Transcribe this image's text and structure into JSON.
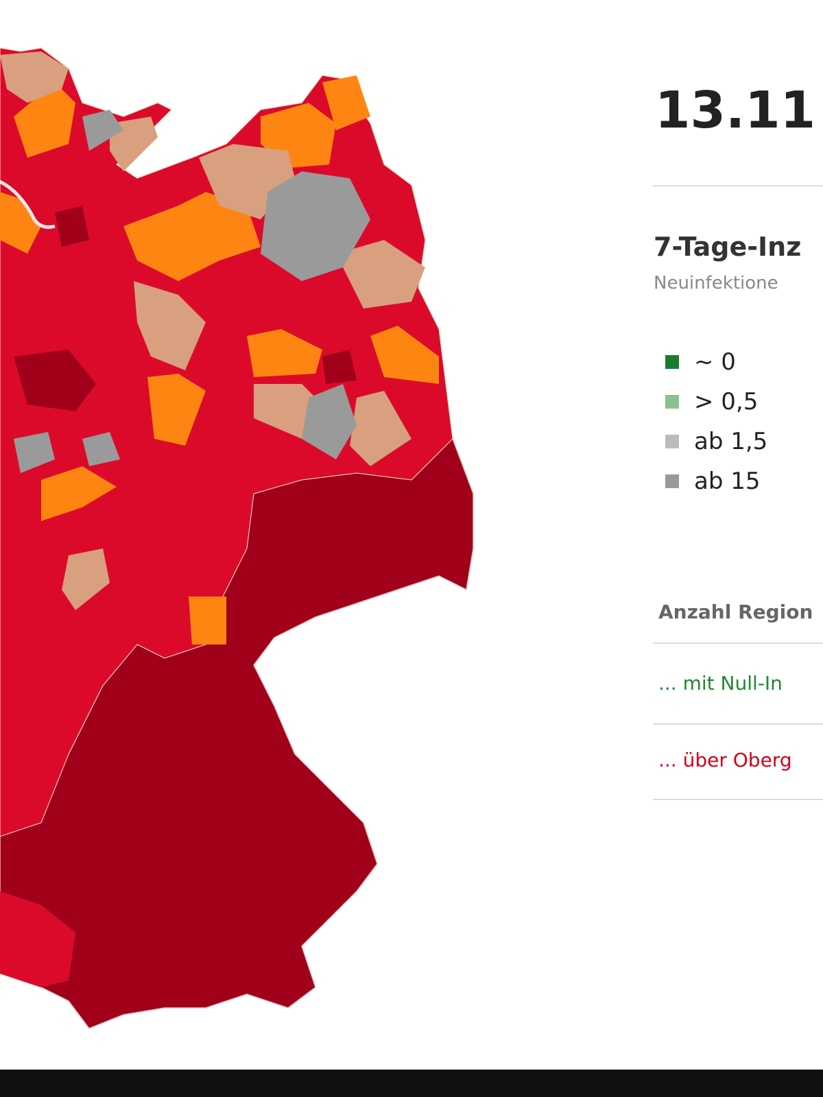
{
  "header": {
    "date": "13.11"
  },
  "legend": {
    "title": "7-Tage-Inz",
    "subtitle": "Neuinfektione",
    "items": [
      "~ 0",
      "> 0,5",
      "ab 1,5",
      "ab 15"
    ]
  },
  "summary": {
    "title": "Anzahl Region",
    "rows": [
      "... mit Null-In",
      "... über Oberg"
    ]
  }
}
